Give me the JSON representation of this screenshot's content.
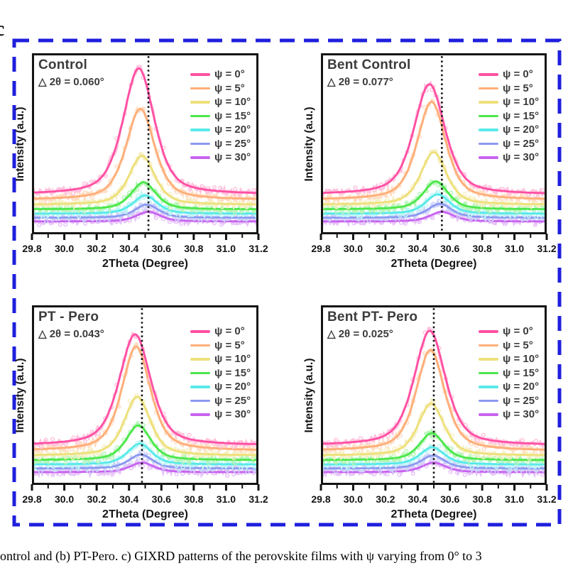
{
  "figure_label": "c",
  "caption": "ontrol and (b) PT-Pero. c) GIXRD patterns of the perovskite films with ψ varying from 0° to 3",
  "colors": {
    "border": "#1f1fde",
    "dotted_line": "#161616",
    "axis": "#141414",
    "title_text": "#3c3c3c"
  },
  "axis": {
    "xlabel": "2Theta (Degree)",
    "ylabel": "Intensity (a.u.)",
    "xmin": 29.8,
    "xmax": 31.2,
    "xticks": [
      "29.8",
      "30.0",
      "30.2",
      "30.4",
      "30.6",
      "30.8",
      "31.0",
      "31.2"
    ],
    "minor_tick_step": 0.1
  },
  "legend": {
    "items": [
      {
        "label": "ψ = 0°",
        "color": "#FF4FA3",
        "light": "#FFC3DE"
      },
      {
        "label": "ψ = 5°",
        "color": "#FFAE78",
        "light": "#FFDDC4"
      },
      {
        "label": "ψ = 10°",
        "color": "#EDE07A",
        "light": "#F7F0C6"
      },
      {
        "label": "ψ = 15°",
        "color": "#4BE74B",
        "light": "#B6F5B6"
      },
      {
        "label": "ψ = 20°",
        "color": "#58E9E9",
        "light": "#BFF6F6"
      },
      {
        "label": "ψ = 25°",
        "color": "#8C99EF",
        "light": "#CDD3F9"
      },
      {
        "label": "ψ = 30°",
        "color": "#C763EF",
        "light": "#E7C4F9"
      }
    ]
  },
  "chart_data": [
    {
      "type": "line",
      "title": "Control",
      "delta_2theta_label": "△ 2θ = 0.060°",
      "delta_2theta_deg": 0.06,
      "dotted_line_x": 30.52,
      "xlabel": "2Theta (Degree)",
      "ylabel": "Intensity (a.u.)",
      "xlim": [
        29.8,
        31.2
      ],
      "series": [
        {
          "name": "ψ = 0°",
          "peak_center": 30.46,
          "amplitude": 0.72,
          "hwhm": 0.115,
          "baseline": 0.21
        },
        {
          "name": "ψ = 5°",
          "peak_center": 30.47,
          "amplitude": 0.52,
          "hwhm": 0.105,
          "baseline": 0.18
        },
        {
          "name": "ψ = 10°",
          "peak_center": 30.48,
          "amplitude": 0.28,
          "hwhm": 0.095,
          "baseline": 0.152
        },
        {
          "name": "ψ = 15°",
          "peak_center": 30.49,
          "amplitude": 0.155,
          "hwhm": 0.09,
          "baseline": 0.126
        },
        {
          "name": "ψ = 20°",
          "peak_center": 30.5,
          "amplitude": 0.105,
          "hwhm": 0.088,
          "baseline": 0.101
        },
        {
          "name": "ψ = 25°",
          "peak_center": 30.51,
          "amplitude": 0.075,
          "hwhm": 0.088,
          "baseline": 0.078
        },
        {
          "name": "ψ = 30°",
          "peak_center": 30.52,
          "amplitude": 0.055,
          "hwhm": 0.088,
          "baseline": 0.057
        }
      ]
    },
    {
      "type": "line",
      "title": "Bent Control",
      "delta_2theta_label": "△ 2θ = 0.077°",
      "delta_2theta_deg": 0.077,
      "dotted_line_x": 30.55,
      "xlabel": "2Theta (Degree)",
      "ylabel": "Intensity (a.u.)",
      "xlim": [
        29.8,
        31.2
      ],
      "series": [
        {
          "name": "ψ = 0°",
          "peak_center": 30.473,
          "amplitude": 0.63,
          "hwhm": 0.115,
          "baseline": 0.21
        },
        {
          "name": "ψ = 5°",
          "peak_center": 30.486,
          "amplitude": 0.56,
          "hwhm": 0.105,
          "baseline": 0.18
        },
        {
          "name": "ψ = 10°",
          "peak_center": 30.499,
          "amplitude": 0.3,
          "hwhm": 0.095,
          "baseline": 0.152
        },
        {
          "name": "ψ = 15°",
          "peak_center": 30.512,
          "amplitude": 0.16,
          "hwhm": 0.09,
          "baseline": 0.126
        },
        {
          "name": "ψ = 20°",
          "peak_center": 30.524,
          "amplitude": 0.11,
          "hwhm": 0.088,
          "baseline": 0.101
        },
        {
          "name": "ψ = 25°",
          "peak_center": 30.537,
          "amplitude": 0.08,
          "hwhm": 0.088,
          "baseline": 0.078
        },
        {
          "name": "ψ = 30°",
          "peak_center": 30.55,
          "amplitude": 0.055,
          "hwhm": 0.088,
          "baseline": 0.057
        }
      ]
    },
    {
      "type": "line",
      "title": "PT - Pero",
      "delta_2theta_label": "△ 2θ = 0.043°",
      "delta_2theta_deg": 0.043,
      "dotted_line_x": 30.48,
      "xlabel": "2Theta (Degree)",
      "ylabel": "Intensity (a.u.)",
      "xlim": [
        29.8,
        31.2
      ],
      "series": [
        {
          "name": "ψ = 0°",
          "peak_center": 30.437,
          "amplitude": 0.64,
          "hwhm": 0.115,
          "baseline": 0.21
        },
        {
          "name": "ψ = 5°",
          "peak_center": 30.444,
          "amplitude": 0.6,
          "hwhm": 0.105,
          "baseline": 0.18
        },
        {
          "name": "ψ = 10°",
          "peak_center": 30.451,
          "amplitude": 0.34,
          "hwhm": 0.095,
          "baseline": 0.152
        },
        {
          "name": "ψ = 15°",
          "peak_center": 30.458,
          "amplitude": 0.2,
          "hwhm": 0.09,
          "baseline": 0.126
        },
        {
          "name": "ψ = 20°",
          "peak_center": 30.466,
          "amplitude": 0.12,
          "hwhm": 0.088,
          "baseline": 0.101
        },
        {
          "name": "ψ = 25°",
          "peak_center": 30.473,
          "amplitude": 0.08,
          "hwhm": 0.088,
          "baseline": 0.078
        },
        {
          "name": "ψ = 30°",
          "peak_center": 30.48,
          "amplitude": 0.055,
          "hwhm": 0.088,
          "baseline": 0.057
        }
      ]
    },
    {
      "type": "line",
      "title": "Bent PT- Pero",
      "delta_2theta_label": "△ 2θ = 0.025°",
      "delta_2theta_deg": 0.025,
      "dotted_line_x": 30.5,
      "xlabel": "2Theta (Degree)",
      "ylabel": "Intensity (a.u.)",
      "xlim": [
        29.8,
        31.2
      ],
      "series": [
        {
          "name": "ψ = 0°",
          "peak_center": 30.475,
          "amplitude": 0.66,
          "hwhm": 0.115,
          "baseline": 0.21
        },
        {
          "name": "ψ = 5°",
          "peak_center": 30.479,
          "amplitude": 0.58,
          "hwhm": 0.105,
          "baseline": 0.18
        },
        {
          "name": "ψ = 10°",
          "peak_center": 30.483,
          "amplitude": 0.3,
          "hwhm": 0.095,
          "baseline": 0.152
        },
        {
          "name": "ψ = 15°",
          "peak_center": 30.487,
          "amplitude": 0.155,
          "hwhm": 0.09,
          "baseline": 0.126
        },
        {
          "name": "ψ = 20°",
          "peak_center": 30.491,
          "amplitude": 0.1,
          "hwhm": 0.088,
          "baseline": 0.101
        },
        {
          "name": "ψ = 25°",
          "peak_center": 30.495,
          "amplitude": 0.075,
          "hwhm": 0.088,
          "baseline": 0.078
        },
        {
          "name": "ψ = 30°",
          "peak_center": 30.5,
          "amplitude": 0.055,
          "hwhm": 0.088,
          "baseline": 0.057
        }
      ]
    }
  ]
}
